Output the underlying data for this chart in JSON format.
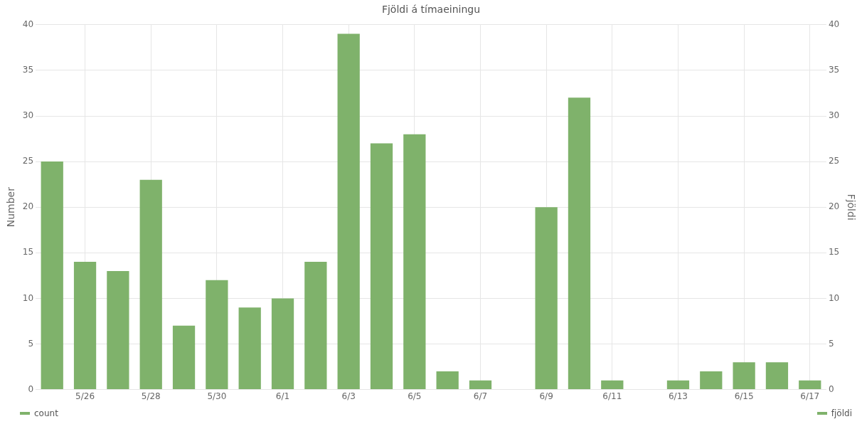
{
  "chart_data": {
    "type": "bar",
    "title": "Fjöldi á tímaeiningu",
    "ylabel": "Number",
    "y2label": "Fjöldi",
    "categories": [
      null,
      "5/26",
      null,
      "5/28",
      null,
      "5/30",
      null,
      "6/1",
      null,
      "6/3",
      null,
      "6/5",
      null,
      "6/7",
      null,
      "6/9",
      null,
      "6/11",
      null,
      "6/13",
      null,
      "6/15",
      null,
      "6/17"
    ],
    "series": [
      {
        "name": "count",
        "color": "#7fb26b",
        "values": [
          25,
          14,
          13,
          23,
          7,
          12,
          9,
          10,
          14,
          39,
          27,
          28,
          2,
          1,
          null,
          20,
          32,
          1,
          null,
          1,
          2,
          3,
          3,
          1
        ]
      },
      {
        "name": "fjöldi",
        "color": "#7fb26b",
        "axis": "y2",
        "values": [
          null,
          null,
          null,
          null,
          null,
          null,
          null,
          null,
          null,
          null,
          null,
          null,
          null,
          null,
          null,
          null,
          null,
          null,
          null,
          null,
          null,
          null,
          null,
          null
        ]
      }
    ],
    "ylim": [
      0,
      40
    ],
    "yticks": [
      0,
      5,
      10,
      15,
      20,
      25,
      30,
      35,
      40
    ],
    "y2lim": [
      0,
      40
    ],
    "y2ticks": [
      0,
      5,
      10,
      15,
      20,
      25,
      30,
      35,
      40
    ],
    "grid": true,
    "legend": "bottom"
  }
}
